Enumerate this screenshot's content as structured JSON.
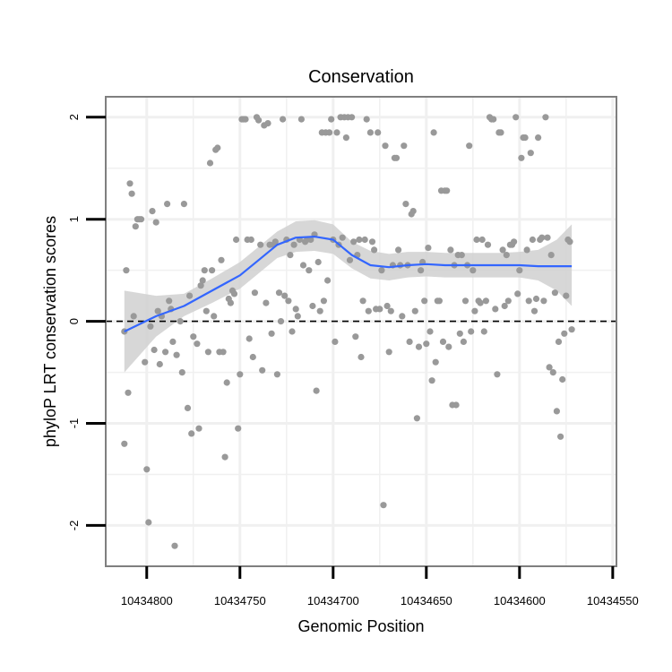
{
  "chart_data": {
    "type": "scatter",
    "title": "Conservation",
    "xlabel": "Genomic Position",
    "ylabel": "phyloP LRT conservation scores",
    "x_reversed": true,
    "xlim": [
      10434822,
      10434548
    ],
    "ylim": [
      -2.4,
      2.2
    ],
    "x_ticks": [
      10434800,
      10434750,
      10434700,
      10434650,
      10434600,
      10434550
    ],
    "x_tick_labels": [
      "10434800",
      "10434750",
      "10434700",
      "10434650",
      "10434600",
      "10434550"
    ],
    "y_ticks": [
      2,
      1,
      0,
      -1,
      -2
    ],
    "y_tick_labels": [
      "2",
      "1",
      "0",
      "-1",
      "-2"
    ],
    "reference_line": {
      "y": 0,
      "style": "dashed"
    },
    "colors": {
      "points": "#999999",
      "smooth": "#3366ff",
      "ribbon": "#d0d0d0",
      "panel_border": "#7f7f7f",
      "grid": "#f0f0f0"
    },
    "grid": true,
    "points": [
      [
        10434812,
        -0.1
      ],
      [
        10434812,
        -1.2
      ],
      [
        10434811,
        0.5
      ],
      [
        10434810,
        -0.7
      ],
      [
        10434809,
        1.35
      ],
      [
        10434808,
        1.25
      ],
      [
        10434807,
        0.05
      ],
      [
        10434806,
        0.93
      ],
      [
        10434805,
        1.0
      ],
      [
        10434804,
        1.0
      ],
      [
        10434803,
        1.0
      ],
      [
        10434801,
        -0.4
      ],
      [
        10434800,
        -1.45
      ],
      [
        10434799,
        -1.97
      ],
      [
        10434798,
        -0.05
      ],
      [
        10434797,
        1.08
      ],
      [
        10434796,
        -0.28
      ],
      [
        10434795,
        0.97
      ],
      [
        10434794,
        0.1
      ],
      [
        10434793,
        -0.42
      ],
      [
        10434792,
        0.05
      ],
      [
        10434790,
        -0.3
      ],
      [
        10434789,
        1.15
      ],
      [
        10434788,
        0.2
      ],
      [
        10434787,
        0.12
      ],
      [
        10434786,
        -0.2
      ],
      [
        10434785,
        -2.2
      ],
      [
        10434784,
        -0.33
      ],
      [
        10434782,
        0.0
      ],
      [
        10434781,
        -0.5
      ],
      [
        10434780,
        1.15
      ],
      [
        10434778,
        -0.85
      ],
      [
        10434777,
        0.25
      ],
      [
        10434776,
        -1.1
      ],
      [
        10434775,
        -0.15
      ],
      [
        10434773,
        -0.22
      ],
      [
        10434772,
        -1.05
      ],
      [
        10434771,
        0.35
      ],
      [
        10434770,
        0.4
      ],
      [
        10434769,
        0.5
      ],
      [
        10434768,
        0.1
      ],
      [
        10434767,
        -0.3
      ],
      [
        10434766,
        1.55
      ],
      [
        10434765,
        0.5
      ],
      [
        10434764,
        0.05
      ],
      [
        10434763,
        1.68
      ],
      [
        10434762,
        1.7
      ],
      [
        10434761,
        -0.3
      ],
      [
        10434760,
        0.6
      ],
      [
        10434759,
        -0.3
      ],
      [
        10434758,
        -1.33
      ],
      [
        10434757,
        -0.6
      ],
      [
        10434756,
        0.22
      ],
      [
        10434755,
        0.18
      ],
      [
        10434754,
        0.3
      ],
      [
        10434753,
        0.27
      ],
      [
        10434752,
        0.8
      ],
      [
        10434751,
        -1.05
      ],
      [
        10434750,
        -0.52
      ],
      [
        10434749,
        1.98
      ],
      [
        10434748,
        1.98
      ],
      [
        10434747,
        1.98
      ],
      [
        10434746,
        0.8
      ],
      [
        10434745,
        -0.17
      ],
      [
        10434744,
        0.8
      ],
      [
        10434743,
        -0.35
      ],
      [
        10434742,
        0.28
      ],
      [
        10434741,
        2.0
      ],
      [
        10434740,
        1.97
      ],
      [
        10434739,
        0.75
      ],
      [
        10434738,
        -0.48
      ],
      [
        10434737,
        1.92
      ],
      [
        10434736,
        0.18
      ],
      [
        10434735,
        1.94
      ],
      [
        10434734,
        0.75
      ],
      [
        10434733,
        -0.12
      ],
      [
        10434732,
        0.75
      ],
      [
        10434731,
        0.78
      ],
      [
        10434730,
        -0.52
      ],
      [
        10434729,
        0.28
      ],
      [
        10434728,
        0.0
      ],
      [
        10434727,
        1.98
      ],
      [
        10434726,
        0.25
      ],
      [
        10434725,
        0.8
      ],
      [
        10434724,
        0.2
      ],
      [
        10434723,
        0.65
      ],
      [
        10434722,
        -0.1
      ],
      [
        10434721,
        0.75
      ],
      [
        10434720,
        0.12
      ],
      [
        10434719,
        0.05
      ],
      [
        10434718,
        0.8
      ],
      [
        10434717,
        1.98
      ],
      [
        10434716,
        0.55
      ],
      [
        10434715,
        0.78
      ],
      [
        10434714,
        0.8
      ],
      [
        10434713,
        0.5
      ],
      [
        10434712,
        0.8
      ],
      [
        10434711,
        0.15
      ],
      [
        10434710,
        0.85
      ],
      [
        10434709,
        -0.68
      ],
      [
        10434708,
        0.58
      ],
      [
        10434707,
        0.1
      ],
      [
        10434706,
        1.85
      ],
      [
        10434705,
        0.2
      ],
      [
        10434704,
        1.85
      ],
      [
        10434703,
        0.4
      ],
      [
        10434702,
        1.85
      ],
      [
        10434701,
        1.98
      ],
      [
        10434700,
        0.8
      ],
      [
        10434699,
        -0.2
      ],
      [
        10434698,
        1.85
      ],
      [
        10434697,
        0.75
      ],
      [
        10434696,
        2.0
      ],
      [
        10434695,
        0.82
      ],
      [
        10434694,
        2.0
      ],
      [
        10434693,
        1.8
      ],
      [
        10434692,
        2.0
      ],
      [
        10434691,
        0.6
      ],
      [
        10434690,
        2.0
      ],
      [
        10434689,
        0.78
      ],
      [
        10434688,
        -0.15
      ],
      [
        10434687,
        0.65
      ],
      [
        10434686,
        0.8
      ],
      [
        10434685,
        -0.35
      ],
      [
        10434684,
        0.2
      ],
      [
        10434683,
        0.8
      ],
      [
        10434682,
        1.98
      ],
      [
        10434681,
        0.1
      ],
      [
        10434680,
        1.85
      ],
      [
        10434679,
        0.78
      ],
      [
        10434678,
        0.7
      ],
      [
        10434677,
        0.12
      ],
      [
        10434676,
        1.85
      ],
      [
        10434675,
        0.12
      ],
      [
        10434674,
        0.5
      ],
      [
        10434673,
        -1.8
      ],
      [
        10434672,
        1.72
      ],
      [
        10434671,
        0.15
      ],
      [
        10434670,
        -0.3
      ],
      [
        10434669,
        0.1
      ],
      [
        10434668,
        0.55
      ],
      [
        10434667,
        1.6
      ],
      [
        10434666,
        1.6
      ],
      [
        10434665,
        0.7
      ],
      [
        10434664,
        0.55
      ],
      [
        10434663,
        0.05
      ],
      [
        10434662,
        1.72
      ],
      [
        10434661,
        1.15
      ],
      [
        10434660,
        0.55
      ],
      [
        10434659,
        -0.2
      ],
      [
        10434658,
        1.05
      ],
      [
        10434657,
        1.08
      ],
      [
        10434656,
        0.1
      ],
      [
        10434655,
        -0.95
      ],
      [
        10434654,
        -0.25
      ],
      [
        10434653,
        0.5
      ],
      [
        10434652,
        0.58
      ],
      [
        10434651,
        0.2
      ],
      [
        10434650,
        -0.22
      ],
      [
        10434649,
        0.72
      ],
      [
        10434648,
        -0.1
      ],
      [
        10434647,
        -0.58
      ],
      [
        10434646,
        1.85
      ],
      [
        10434645,
        -0.4
      ],
      [
        10434644,
        0.2
      ],
      [
        10434643,
        0.2
      ],
      [
        10434642,
        1.28
      ],
      [
        10434641,
        -0.2
      ],
      [
        10434640,
        1.28
      ],
      [
        10434639,
        1.28
      ],
      [
        10434638,
        -0.25
      ],
      [
        10434637,
        0.7
      ],
      [
        10434636,
        -0.82
      ],
      [
        10434635,
        0.55
      ],
      [
        10434634,
        -0.82
      ],
      [
        10434633,
        0.65
      ],
      [
        10434632,
        -0.12
      ],
      [
        10434631,
        0.65
      ],
      [
        10434630,
        -0.2
      ],
      [
        10434629,
        0.2
      ],
      [
        10434628,
        0.55
      ],
      [
        10434627,
        1.72
      ],
      [
        10434626,
        -0.1
      ],
      [
        10434625,
        0.5
      ],
      [
        10434624,
        0.1
      ],
      [
        10434623,
        0.8
      ],
      [
        10434622,
        0.2
      ],
      [
        10434621,
        0.18
      ],
      [
        10434620,
        0.8
      ],
      [
        10434619,
        -0.1
      ],
      [
        10434618,
        0.2
      ],
      [
        10434617,
        0.75
      ],
      [
        10434616,
        2.0
      ],
      [
        10434615,
        1.98
      ],
      [
        10434614,
        1.98
      ],
      [
        10434613,
        0.12
      ],
      [
        10434612,
        -0.52
      ],
      [
        10434611,
        1.85
      ],
      [
        10434610,
        1.85
      ],
      [
        10434609,
        0.7
      ],
      [
        10434608,
        0.15
      ],
      [
        10434607,
        0.65
      ],
      [
        10434606,
        0.2
      ],
      [
        10434605,
        0.75
      ],
      [
        10434604,
        0.75
      ],
      [
        10434603,
        0.78
      ],
      [
        10434602,
        2.0
      ],
      [
        10434601,
        0.27
      ],
      [
        10434600,
        0.5
      ],
      [
        10434599,
        1.6
      ],
      [
        10434598,
        1.8
      ],
      [
        10434597,
        1.8
      ],
      [
        10434596,
        0.7
      ],
      [
        10434595,
        0.2
      ],
      [
        10434594,
        1.65
      ],
      [
        10434593,
        0.8
      ],
      [
        10434592,
        0.1
      ],
      [
        10434591,
        0.22
      ],
      [
        10434590,
        1.8
      ],
      [
        10434589,
        0.8
      ],
      [
        10434588,
        0.82
      ],
      [
        10434587,
        0.2
      ],
      [
        10434586,
        2.0
      ],
      [
        10434585,
        0.82
      ],
      [
        10434584,
        -0.45
      ],
      [
        10434583,
        0.65
      ],
      [
        10434582,
        -0.5
      ],
      [
        10434581,
        0.28
      ],
      [
        10434580,
        -0.88
      ],
      [
        10434579,
        -0.2
      ],
      [
        10434578,
        -1.13
      ],
      [
        10434577,
        -0.57
      ],
      [
        10434576,
        -0.12
      ],
      [
        10434575,
        0.25
      ],
      [
        10434574,
        0.8
      ],
      [
        10434573,
        0.78
      ],
      [
        10434572,
        -0.08
      ]
    ],
    "smooth_line": {
      "x": [
        10434812,
        10434795,
        10434780,
        10434765,
        10434750,
        10434740,
        10434730,
        10434720,
        10434710,
        10434700,
        10434690,
        10434680,
        10434670,
        10434660,
        10434650,
        10434640,
        10434630,
        10434620,
        10434610,
        10434600,
        10434590,
        10434580,
        10434572
      ],
      "y": [
        -0.1,
        0.05,
        0.15,
        0.3,
        0.45,
        0.6,
        0.75,
        0.82,
        0.83,
        0.8,
        0.65,
        0.55,
        0.53,
        0.55,
        0.56,
        0.55,
        0.55,
        0.55,
        0.55,
        0.55,
        0.54,
        0.54,
        0.54
      ],
      "lower": [
        -0.5,
        -0.15,
        0.05,
        0.18,
        0.32,
        0.47,
        0.62,
        0.68,
        0.69,
        0.66,
        0.52,
        0.42,
        0.4,
        0.43,
        0.44,
        0.43,
        0.43,
        0.43,
        0.43,
        0.43,
        0.4,
        0.3,
        0.15
      ],
      "upper": [
        0.3,
        0.25,
        0.27,
        0.42,
        0.58,
        0.73,
        0.88,
        0.98,
        0.99,
        0.95,
        0.78,
        0.69,
        0.66,
        0.68,
        0.68,
        0.67,
        0.67,
        0.67,
        0.67,
        0.68,
        0.7,
        0.8,
        0.95
      ]
    }
  }
}
